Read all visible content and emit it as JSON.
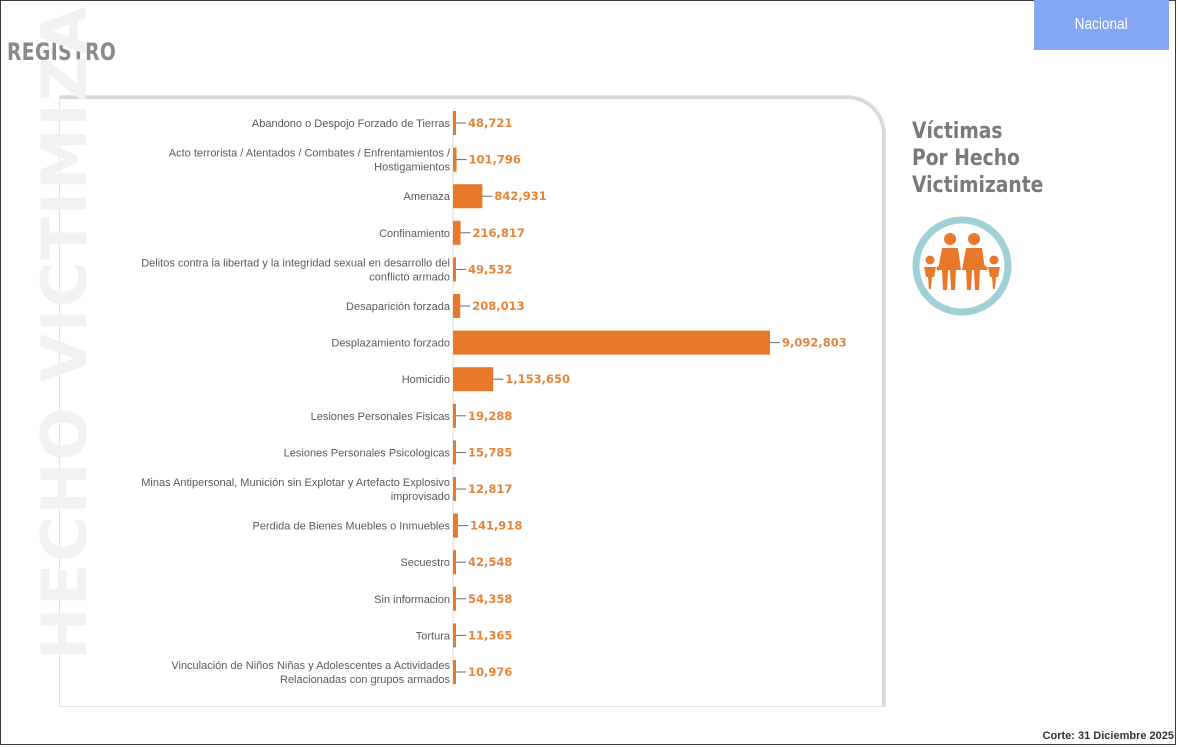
{
  "header": {
    "section_title": "REGISTRO",
    "scope_button": "Nacional"
  },
  "watermark": "HECHO VICTIMIZANTE",
  "side_title": {
    "line1": "Víctimas",
    "line2": "Por Hecho",
    "line3": "Victimizante"
  },
  "icon": "family-icon",
  "footer": {
    "corte": "Corte: 31 Diciembre 2025"
  },
  "colors": {
    "bar": "#e8792b",
    "accent": "#85a6f2",
    "icon_ring": "#9fd0d6"
  },
  "chart_data": {
    "type": "bar",
    "orientation": "horizontal",
    "title": "Víctimas Por Hecho Victimizante",
    "categories": [
      [
        "Abandono o Despojo Forzado de Tierras"
      ],
      [
        "Acto terrorista / Atentados / Combates / Enfrentamientos /",
        "Hostigamientos"
      ],
      [
        "Amenaza"
      ],
      [
        "Confinamiento"
      ],
      [
        "Delitos contra la libertad y la integridad sexual en desarrollo del",
        "conflicto armado"
      ],
      [
        "Desaparición forzada"
      ],
      [
        "Desplazamiento forzado"
      ],
      [
        "Homicidio"
      ],
      [
        "Lesiones Personales Fisicas"
      ],
      [
        "Lesiones Personales Psicologicas"
      ],
      [
        "Minas Antipersonal, Munición sin Explotar y Artefacto Explosivo",
        "improvisado"
      ],
      [
        "Perdida de Bienes Muebles o Inmuebles"
      ],
      [
        "Secuestro"
      ],
      [
        "Sin informacion"
      ],
      [
        "Tortura"
      ],
      [
        "Vinculación de Niños Niñas y Adolescentes a Actividades",
        "Relacionadas con grupos armados"
      ]
    ],
    "values": [
      48721,
      101796,
      842931,
      216817,
      49532,
      208013,
      9092803,
      1153650,
      19288,
      15785,
      12817,
      141918,
      42548,
      54358,
      11365,
      10976
    ],
    "value_labels": [
      "48,721",
      "101,796",
      "842,931",
      "216,817",
      "49,532",
      "208,013",
      "9,092,803",
      "1,153,650",
      "19,288",
      "15,785",
      "12,817",
      "141,918",
      "42,548",
      "54,358",
      "11,365",
      "10,976"
    ],
    "xlim": [
      0,
      9092803
    ],
    "grid": false,
    "legend": "none"
  }
}
